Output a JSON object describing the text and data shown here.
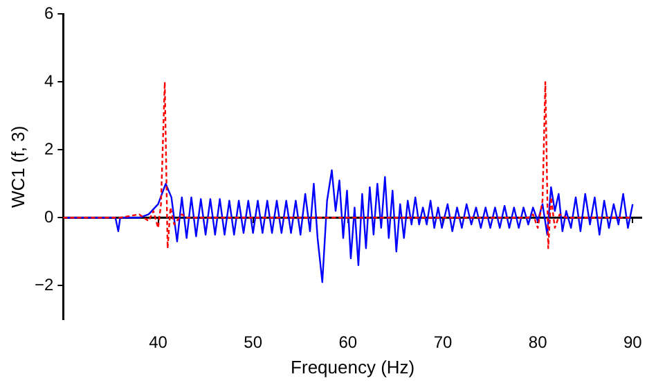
{
  "chart_data": {
    "type": "line",
    "xlabel": "Frequency (Hz)",
    "ylabel": "WC1 (f, 3)",
    "xlim": [
      30,
      91
    ],
    "xticks": [
      40,
      50,
      60,
      70,
      80,
      90
    ],
    "ylim": [
      -3,
      6
    ],
    "yticks": [
      -2,
      0,
      2,
      4,
      6
    ],
    "grid": false,
    "legend": false,
    "marker": "none",
    "ref_lines": [
      {
        "axis": "y",
        "value": 0,
        "color": "#000000",
        "line_style": "solid"
      }
    ],
    "series": [
      {
        "color": "#0000ff",
        "line_style": "solid",
        "x": [
          30,
          35,
          35.5,
          35.8,
          36,
          38,
          39,
          40,
          40.8,
          41.4,
          42,
          42.5,
          43,
          43.5,
          44,
          44.5,
          45,
          45.5,
          46,
          46.5,
          47,
          47.5,
          48,
          48.5,
          49,
          49.5,
          50,
          50.5,
          51,
          51.5,
          52,
          52.5,
          53,
          53.5,
          54,
          54.5,
          55,
          55.5,
          56,
          56.4,
          56.8,
          57.3,
          57.8,
          58.3,
          58.7,
          59.1,
          59.5,
          59.9,
          60.3,
          60.7,
          61.1,
          61.5,
          61.9,
          62.3,
          62.7,
          63.1,
          63.5,
          63.9,
          64.3,
          64.7,
          65.1,
          65.5,
          65.9,
          66.3,
          66.7,
          67.1,
          67.5,
          67.9,
          68.3,
          68.7,
          69.1,
          69.5,
          69.9,
          70.5,
          71,
          71.5,
          72,
          72.5,
          73,
          73.5,
          74,
          74.5,
          75,
          75.5,
          76,
          76.5,
          77,
          77.5,
          78,
          78.5,
          79,
          79.5,
          80,
          80.5,
          81,
          81.4,
          81.8,
          82.2,
          82.6,
          83,
          83.5,
          84,
          84.5,
          85,
          85.5,
          86,
          86.5,
          87,
          87.5,
          88,
          88.5,
          89,
          89.5,
          90
        ],
        "values": [
          0,
          0,
          0,
          -0.4,
          0,
          0,
          0.1,
          0.4,
          1.0,
          0.6,
          -0.7,
          0.6,
          -0.6,
          0.6,
          -0.55,
          0.55,
          -0.5,
          0.55,
          -0.5,
          0.55,
          -0.5,
          0.5,
          -0.5,
          0.5,
          -0.45,
          0.5,
          -0.45,
          0.5,
          -0.45,
          0.5,
          -0.45,
          0.5,
          -0.45,
          0.5,
          -0.45,
          0.5,
          -0.5,
          0.7,
          -0.4,
          1.0,
          -0.6,
          -1.9,
          0.5,
          1.4,
          0.2,
          1.1,
          -0.6,
          0.8,
          -1.2,
          0.3,
          -1.4,
          0.7,
          -0.9,
          0.9,
          -0.5,
          1.0,
          -0.3,
          1.2,
          -0.6,
          0.8,
          -1.0,
          0.4,
          -0.6,
          0.5,
          -0.2,
          0.6,
          -0.2,
          0.3,
          -0.2,
          0.5,
          -0.3,
          0.3,
          -0.3,
          0.4,
          -0.4,
          0.3,
          -0.3,
          0.4,
          -0.2,
          0.3,
          -0.3,
          0.3,
          -0.3,
          0.3,
          -0.3,
          0.35,
          -0.3,
          0.3,
          -0.3,
          0.3,
          -0.2,
          0.3,
          -0.1,
          0.4,
          -0.5,
          0.9,
          0.2,
          0.7,
          -0.4,
          0.2,
          -0.3,
          0.6,
          -0.4,
          0.7,
          -0.2,
          0.6,
          -0.5,
          0.5,
          -0.3,
          0.4,
          -0.2,
          0.7,
          -0.3,
          0.4
        ]
      },
      {
        "color": "#ff0000",
        "line_style": "dashed",
        "x": [
          30,
          36,
          38,
          39,
          39.5,
          40,
          40.3,
          40.7,
          41.0,
          41.3,
          41.7,
          42.5,
          43,
          79,
          79.5,
          80,
          80.5,
          80.8,
          81.1,
          81.4,
          81.8,
          82.3,
          83,
          90
        ],
        "values": [
          0,
          0,
          0.1,
          -0.1,
          0.2,
          -0.3,
          0.4,
          4.0,
          -0.9,
          0.3,
          -0.2,
          0.1,
          0,
          0,
          0.1,
          -0.3,
          0.5,
          4.0,
          -0.9,
          0.6,
          -0.3,
          0.1,
          0,
          0
        ]
      }
    ]
  }
}
